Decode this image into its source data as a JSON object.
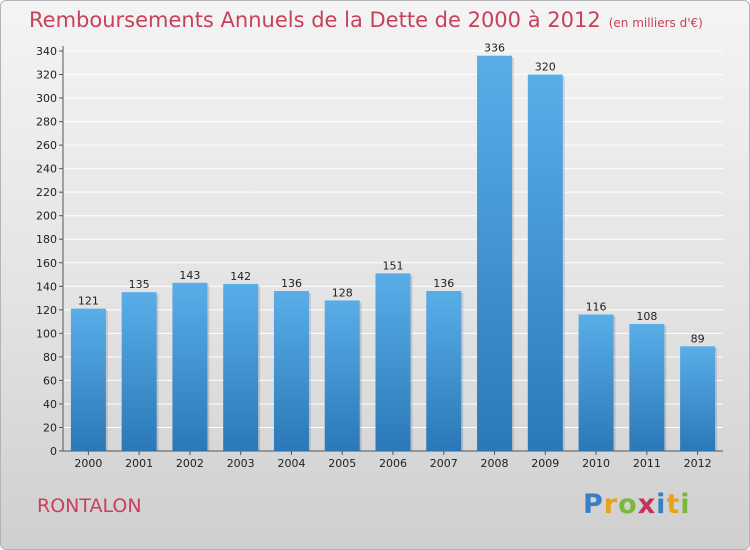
{
  "header": {
    "title": "Remboursements Annuels de la Dette de 2000 à 2012",
    "unit": "(en milliers d'€)"
  },
  "footer": {
    "place": "RONTALON",
    "logo_letters": [
      "P",
      "r",
      "o",
      "x",
      "i",
      "t",
      "i"
    ],
    "logo_colors": [
      "#3a7fc4",
      "#e8a21e",
      "#7ab83c",
      "#c8305a",
      "#3a7fc4",
      "#e8a21e",
      "#7ab83c"
    ]
  },
  "colors": {
    "title": "#c8405a",
    "bar_top": "#5aaee8",
    "bar_bottom": "#2a78b8"
  },
  "chart_data": {
    "type": "bar",
    "categories": [
      "2000",
      "2001",
      "2002",
      "2003",
      "2004",
      "2005",
      "2006",
      "2007",
      "2008",
      "2009",
      "2010",
      "2011",
      "2012"
    ],
    "values": [
      121,
      135,
      143,
      142,
      136,
      128,
      151,
      136,
      336,
      320,
      116,
      108,
      89
    ],
    "ylim": [
      0,
      340
    ],
    "yticks": [
      0,
      20,
      40,
      60,
      80,
      100,
      120,
      140,
      160,
      180,
      200,
      220,
      240,
      260,
      280,
      300,
      320,
      340
    ],
    "grid": true,
    "data_labels": true
  }
}
